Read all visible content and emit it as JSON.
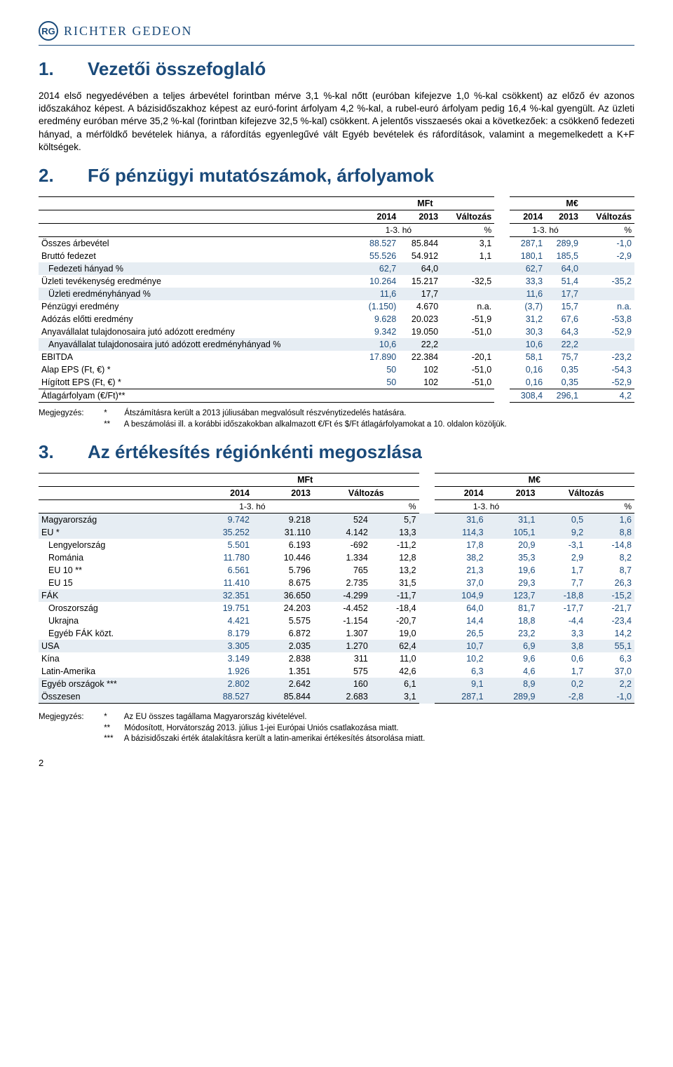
{
  "header": {
    "logo_text": "RG",
    "company": "RICHTER GEDEON"
  },
  "section1": {
    "num": "1.",
    "title": "Vezetői összefoglaló",
    "body": "2014 első negyedévében a teljes árbevétel forintban mérve 3,1 %-kal nőtt (euróban kifejezve 1,0 %-kal csökkent) az előző év azonos időszakához képest. A bázisidőszakhoz képest az euró-forint árfolyam 4,2 %-kal, a rubel-euró árfolyam pedig 16,4 %-kal gyengült. Az üzleti eredmény euróban mérve 35,2 %-kal (forintban kifejezve 32,5 %-kal) csökkent. A jelentős visszaesés okai a következőek: a csökkenő fedezeti hányad, a mérföldkő bevételek hiánya, a ráfordítás egyenlegűvé vált Egyéb bevételek és ráfordítások, valamint a megemelkedett a K+F költségek."
  },
  "section2": {
    "num": "2.",
    "title": "Fő pénzügyi mutatószámok, árfolyamok"
  },
  "table1": {
    "hdr_mft": "MFt",
    "hdr_me": "M€",
    "hdr_2014": "2014",
    "hdr_2013": "2013",
    "hdr_valtozas": "Változás",
    "hdr_ho": "1-3. hó",
    "hdr_pct": "%",
    "rows": [
      {
        "label": "Összes árbevétel",
        "mft2014": "88.527",
        "mft2013": "85.844",
        "mftchg": "3,1",
        "me2014": "287,1",
        "me2013": "289,9",
        "mechg": "-1,0"
      },
      {
        "label": "Bruttó fedezet",
        "mft2014": "55.526",
        "mft2013": "54.912",
        "mftchg": "1,1",
        "me2014": "180,1",
        "me2013": "185,5",
        "mechg": "-2,9"
      },
      {
        "label": "Fedezeti hányad %",
        "mft2014": "62,7",
        "mft2013": "64,0",
        "mftchg": "",
        "me2014": "62,7",
        "me2013": "64,0",
        "mechg": "",
        "shade": true,
        "indent": true
      },
      {
        "label": "Üzleti tevékenység eredménye",
        "mft2014": "10.264",
        "mft2013": "15.217",
        "mftchg": "-32,5",
        "me2014": "33,3",
        "me2013": "51,4",
        "mechg": "-35,2"
      },
      {
        "label": "Üzleti eredményhányad %",
        "mft2014": "11,6",
        "mft2013": "17,7",
        "mftchg": "",
        "me2014": "11,6",
        "me2013": "17,7",
        "mechg": "",
        "shade": true,
        "indent": true
      },
      {
        "label": "Pénzügyi eredmény",
        "mft2014": "(1.150)",
        "mft2013": "4.670",
        "mftchg": "n.a.",
        "me2014": "(3,7)",
        "me2013": "15,7",
        "mechg": "n.a."
      },
      {
        "label": "Adózás előtti eredmény",
        "mft2014": "9.628",
        "mft2013": "20.023",
        "mftchg": "-51,9",
        "me2014": "31,2",
        "me2013": "67,6",
        "mechg": "-53,8"
      },
      {
        "label": "Anyavállalat tulajdonosaira jutó adózott eredmény",
        "mft2014": "9.342",
        "mft2013": "19.050",
        "mftchg": "-51,0",
        "me2014": "30,3",
        "me2013": "64,3",
        "mechg": "-52,9"
      },
      {
        "label": "Anyavállalat tulajdonosaira jutó adózott eredményhányad %",
        "mft2014": "10,6",
        "mft2013": "22,2",
        "mftchg": "",
        "me2014": "10,6",
        "me2013": "22,2",
        "mechg": "",
        "shade": true,
        "indent": true
      },
      {
        "label": "EBITDA",
        "mft2014": "17.890",
        "mft2013": "22.384",
        "mftchg": "-20,1",
        "me2014": "58,1",
        "me2013": "75,7",
        "mechg": "-23,2"
      },
      {
        "label": "Alap EPS (Ft, €) *",
        "mft2014": "50",
        "mft2013": "102",
        "mftchg": "-51,0",
        "me2014": "0,16",
        "me2013": "0,35",
        "mechg": "-54,3"
      },
      {
        "label": "Hígított EPS (Ft, €) *",
        "mft2014": "50",
        "mft2013": "102",
        "mftchg": "-51,0",
        "me2014": "0,16",
        "me2013": "0,35",
        "mechg": "-52,9"
      },
      {
        "label": "Átlagárfolyam (€/Ft)**",
        "mft2014": "",
        "mft2013": "",
        "mftchg": "",
        "me2014": "308,4",
        "me2013": "296,1",
        "mechg": "4,2",
        "toprule": true,
        "bottomrule": true
      }
    ]
  },
  "notes1": {
    "prefix": "Megjegyzés:",
    "n1star": "*",
    "n1": "Átszámításra került a 2013 júliusában megvalósult részvénytizedelés hatására.",
    "n2star": "**",
    "n2": "A beszámolási ill. a korábbi időszakokban alkalmazott €/Ft és $/Ft átlagárfolyamokat a 10. oldalon közöljük."
  },
  "section3": {
    "num": "3.",
    "title": "Az értékesítés régiónkénti megoszlása"
  },
  "table2": {
    "hdr_mft": "MFt",
    "hdr_me": "M€",
    "hdr_2014": "2014",
    "hdr_2013": "2013",
    "hdr_valtozas": "Változás",
    "hdr_ho": "1-3. hó",
    "hdr_pct": "%",
    "rows": [
      {
        "label": "Magyarország",
        "mft2014": "9.742",
        "mft2013": "9.218",
        "mftabs": "524",
        "mftpct": "5,7",
        "me2014": "31,6",
        "me2013": "31,1",
        "meabs": "0,5",
        "mepct": "1,6",
        "shade": true
      },
      {
        "label": "EU *",
        "mft2014": "35.252",
        "mft2013": "31.110",
        "mftabs": "4.142",
        "mftpct": "13,3",
        "me2014": "114,3",
        "me2013": "105,1",
        "meabs": "9,2",
        "mepct": "8,8",
        "shade": true
      },
      {
        "label": "Lengyelország",
        "mft2014": "5.501",
        "mft2013": "6.193",
        "mftabs": "-692",
        "mftpct": "-11,2",
        "me2014": "17,8",
        "me2013": "20,9",
        "meabs": "-3,1",
        "mepct": "-14,8",
        "indent": true
      },
      {
        "label": "Románia",
        "mft2014": "11.780",
        "mft2013": "10.446",
        "mftabs": "1.334",
        "mftpct": "12,8",
        "me2014": "38,2",
        "me2013": "35,3",
        "meabs": "2,9",
        "mepct": "8,2",
        "indent": true
      },
      {
        "label": "EU 10 **",
        "mft2014": "6.561",
        "mft2013": "5.796",
        "mftabs": "765",
        "mftpct": "13,2",
        "me2014": "21,3",
        "me2013": "19,6",
        "meabs": "1,7",
        "mepct": "8,7",
        "indent": true
      },
      {
        "label": "EU 15",
        "mft2014": "11.410",
        "mft2013": "8.675",
        "mftabs": "2.735",
        "mftpct": "31,5",
        "me2014": "37,0",
        "me2013": "29,3",
        "meabs": "7,7",
        "mepct": "26,3",
        "indent": true
      },
      {
        "label": "FÁK",
        "mft2014": "32.351",
        "mft2013": "36.650",
        "mftabs": "-4.299",
        "mftpct": "-11,7",
        "me2014": "104,9",
        "me2013": "123,7",
        "meabs": "-18,8",
        "mepct": "-15,2",
        "shade": true
      },
      {
        "label": "Oroszország",
        "mft2014": "19.751",
        "mft2013": "24.203",
        "mftabs": "-4.452",
        "mftpct": "-18,4",
        "me2014": "64,0",
        "me2013": "81,7",
        "meabs": "-17,7",
        "mepct": "-21,7",
        "indent": true
      },
      {
        "label": "Ukrajna",
        "mft2014": "4.421",
        "mft2013": "5.575",
        "mftabs": "-1.154",
        "mftpct": "-20,7",
        "me2014": "14,4",
        "me2013": "18,8",
        "meabs": "-4,4",
        "mepct": "-23,4",
        "indent": true
      },
      {
        "label": "Egyéb FÁK közt.",
        "mft2014": "8.179",
        "mft2013": "6.872",
        "mftabs": "1.307",
        "mftpct": "19,0",
        "me2014": "26,5",
        "me2013": "23,2",
        "meabs": "3,3",
        "mepct": "14,2",
        "indent": true
      },
      {
        "label": "USA",
        "mft2014": "3.305",
        "mft2013": "2.035",
        "mftabs": "1.270",
        "mftpct": "62,4",
        "me2014": "10,7",
        "me2013": "6,9",
        "meabs": "3,8",
        "mepct": "55,1",
        "shade": true
      },
      {
        "label": "Kína",
        "mft2014": "3.149",
        "mft2013": "2.838",
        "mftabs": "311",
        "mftpct": "11,0",
        "me2014": "10,2",
        "me2013": "9,6",
        "meabs": "0,6",
        "mepct": "6,3"
      },
      {
        "label": "Latin-Amerika",
        "mft2014": "1.926",
        "mft2013": "1.351",
        "mftabs": "575",
        "mftpct": "42,6",
        "me2014": "6,3",
        "me2013": "4,6",
        "meabs": "1,7",
        "mepct": "37,0"
      },
      {
        "label": "Egyéb országok ***",
        "mft2014": "2.802",
        "mft2013": "2.642",
        "mftabs": "160",
        "mftpct": "6,1",
        "me2014": "9,1",
        "me2013": "8,9",
        "meabs": "0,2",
        "mepct": "2,2",
        "shade": true
      },
      {
        "label": "Összesen",
        "mft2014": "88.527",
        "mft2013": "85.844",
        "mftabs": "2.683",
        "mftpct": "3,1",
        "me2014": "287,1",
        "me2013": "289,9",
        "meabs": "-2,8",
        "mepct": "-1,0",
        "shade": true,
        "bottomrule": true
      }
    ]
  },
  "notes2": {
    "prefix": "Megjegyzés:",
    "n1star": "*",
    "n1": "Az EU összes tagállama Magyarország kivételével.",
    "n2star": "**",
    "n2": "Módosított, Horvátország 2013. július 1-jei Európai Uniós csatlakozása miatt.",
    "n3star": "***",
    "n3": "A bázisidőszaki érték átalakításra került a latin-amerikai értékesítés átsorolása miatt."
  },
  "pagenum": "2",
  "colors": {
    "brand": "#1a4a7a",
    "shade": "#e6edf3",
    "text": "#000000"
  }
}
